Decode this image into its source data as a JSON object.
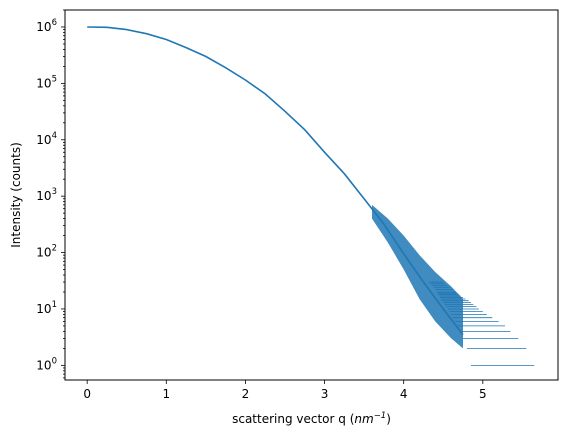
{
  "chart_data": {
    "type": "scatter",
    "title": "",
    "xlabel_main": "scattering vector q (",
    "xlabel_unit_base": "nm",
    "xlabel_unit_exp": "−1",
    "xlabel_close": ")",
    "ylabel": "Intensity (counts)",
    "xlim": [
      -0.28,
      5.95
    ],
    "ylim": [
      0.55,
      2000000
    ],
    "yscale": "log",
    "grid": false,
    "series_color": "#1f77b4",
    "x_ticks": [
      {
        "value": 0,
        "label": "0"
      },
      {
        "value": 1,
        "label": "1"
      },
      {
        "value": 2,
        "label": "2"
      },
      {
        "value": 3,
        "label": "3"
      },
      {
        "value": 4,
        "label": "4"
      },
      {
        "value": 5,
        "label": "5"
      }
    ],
    "y_ticks": [
      {
        "value": 1,
        "base": "10",
        "exp": "0"
      },
      {
        "value": 10,
        "base": "10",
        "exp": "1"
      },
      {
        "value": 100,
        "base": "10",
        "exp": "2"
      },
      {
        "value": 1000,
        "base": "10",
        "exp": "3"
      },
      {
        "value": 10000,
        "base": "10",
        "exp": "4"
      },
      {
        "value": 100000,
        "base": "10",
        "exp": "5"
      },
      {
        "value": 1000000,
        "base": "10",
        "exp": "6"
      }
    ],
    "curve": [
      {
        "x": 0.0,
        "y": 1000000
      },
      {
        "x": 0.25,
        "y": 985000
      },
      {
        "x": 0.5,
        "y": 900000
      },
      {
        "x": 0.75,
        "y": 760000
      },
      {
        "x": 1.0,
        "y": 600000
      },
      {
        "x": 1.25,
        "y": 430000
      },
      {
        "x": 1.5,
        "y": 300000
      },
      {
        "x": 1.75,
        "y": 190000
      },
      {
        "x": 2.0,
        "y": 115000
      },
      {
        "x": 2.25,
        "y": 65000
      },
      {
        "x": 2.5,
        "y": 32000
      },
      {
        "x": 2.75,
        "y": 15000
      },
      {
        "x": 3.0,
        "y": 6000
      },
      {
        "x": 3.25,
        "y": 2500
      },
      {
        "x": 3.5,
        "y": 900
      },
      {
        "x": 3.75,
        "y": 320
      },
      {
        "x": 4.0,
        "y": 95
      },
      {
        "x": 4.25,
        "y": 30
      },
      {
        "x": 4.5,
        "y": 10
      },
      {
        "x": 4.75,
        "y": 3.5
      }
    ],
    "noise_band": [
      {
        "x": 3.6,
        "lo": 400,
        "hi": 700
      },
      {
        "x": 3.8,
        "lo": 150,
        "hi": 400
      },
      {
        "x": 4.0,
        "lo": 50,
        "hi": 200
      },
      {
        "x": 4.2,
        "lo": 15,
        "hi": 90
      },
      {
        "x": 4.4,
        "lo": 6,
        "hi": 45
      },
      {
        "x": 4.6,
        "lo": 3,
        "hi": 25
      },
      {
        "x": 4.75,
        "lo": 2,
        "hi": 15
      }
    ],
    "level_lines": [
      {
        "y": 1,
        "x0": 4.85,
        "x1": 5.65
      },
      {
        "y": 2,
        "x0": 4.8,
        "x1": 5.55
      },
      {
        "y": 3,
        "x0": 4.75,
        "x1": 5.45
      },
      {
        "y": 4,
        "x0": 4.7,
        "x1": 5.35
      },
      {
        "y": 5,
        "x0": 4.68,
        "x1": 5.28
      },
      {
        "y": 6,
        "x0": 4.65,
        "x1": 5.2
      },
      {
        "y": 7,
        "x0": 4.62,
        "x1": 5.12
      },
      {
        "y": 8,
        "x0": 4.6,
        "x1": 5.05
      },
      {
        "y": 9,
        "x0": 4.58,
        "x1": 5.0
      },
      {
        "y": 10,
        "x0": 4.56,
        "x1": 4.95
      },
      {
        "y": 11,
        "x0": 4.54,
        "x1": 4.92
      },
      {
        "y": 12,
        "x0": 4.52,
        "x1": 4.88
      },
      {
        "y": 13,
        "x0": 4.5,
        "x1": 4.85
      },
      {
        "y": 14,
        "x0": 4.48,
        "x1": 4.82
      },
      {
        "y": 15,
        "x0": 4.47,
        "x1": 4.78
      },
      {
        "y": 16,
        "x0": 4.46,
        "x1": 4.75
      },
      {
        "y": 17,
        "x0": 4.45,
        "x1": 4.72
      },
      {
        "y": 18,
        "x0": 4.44,
        "x1": 4.7
      },
      {
        "y": 19,
        "x0": 4.43,
        "x1": 4.68
      },
      {
        "y": 20,
        "x0": 4.42,
        "x1": 4.66
      },
      {
        "y": 22,
        "x0": 4.4,
        "x1": 4.62
      },
      {
        "y": 24,
        "x0": 4.38,
        "x1": 4.58
      },
      {
        "y": 26,
        "x0": 4.36,
        "x1": 4.55
      },
      {
        "y": 28,
        "x0": 4.34,
        "x1": 4.52
      },
      {
        "y": 30,
        "x0": 4.32,
        "x1": 4.5
      }
    ]
  }
}
